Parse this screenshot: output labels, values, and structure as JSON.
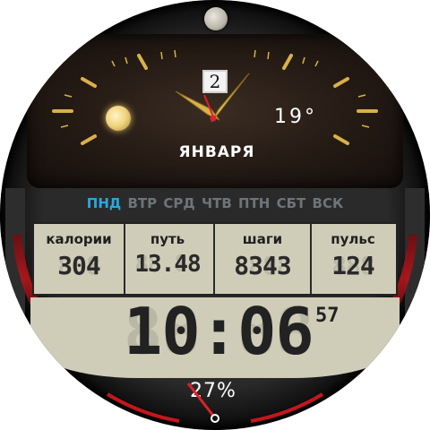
{
  "date": {
    "day": "2",
    "month": "ЯНВАРЯ"
  },
  "weather": {
    "temperature": "19°"
  },
  "weekdays": [
    {
      "label": "ПНД",
      "active": true
    },
    {
      "label": "ВТР",
      "active": false
    },
    {
      "label": "СРД",
      "active": false
    },
    {
      "label": "ЧТВ",
      "active": false
    },
    {
      "label": "ПТН",
      "active": false
    },
    {
      "label": "СБТ",
      "active": false
    },
    {
      "label": "ВСК",
      "active": false
    }
  ],
  "stats": [
    {
      "label": "калории",
      "value": "304"
    },
    {
      "label": "путь",
      "value": "13.48"
    },
    {
      "label": "шаги",
      "value": "8343"
    },
    {
      "label": "пульс",
      "value": "124"
    }
  ],
  "time": {
    "hours": "10",
    "minutes": "06",
    "seconds": "57"
  },
  "battery": {
    "percent_text": "27%"
  },
  "colors": {
    "active_day": "#2aa7e0",
    "inactive_day": "#6f7478",
    "hand_gold": "#d8b24a",
    "accent_red": "#e0202a",
    "lcd_bg": "#cfcdb8"
  }
}
